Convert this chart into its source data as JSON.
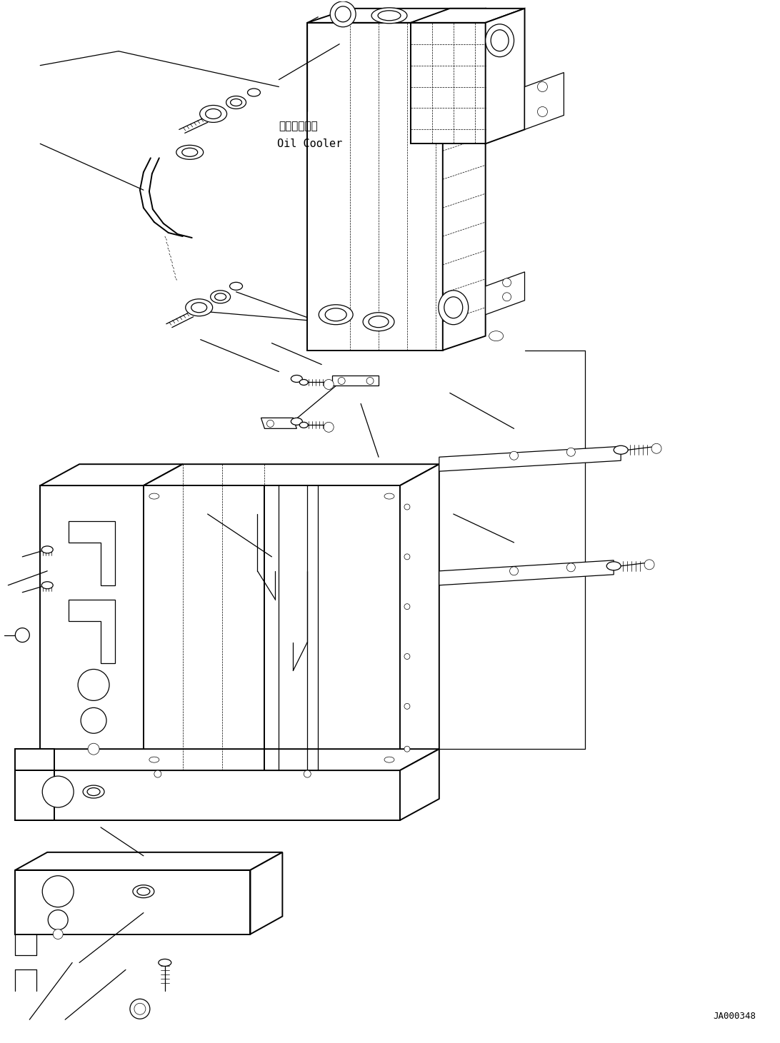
{
  "figure_width": 10.92,
  "figure_height": 14.61,
  "dpi": 100,
  "background_color": "#ffffff",
  "line_color": "#000000",
  "watermark_text": "JA000348",
  "oil_cooler_label_jp": "オイルクーラ",
  "oil_cooler_label_en": "Oil Cooler",
  "lw_thick": 1.4,
  "lw_med": 0.9,
  "lw_thin": 0.5
}
